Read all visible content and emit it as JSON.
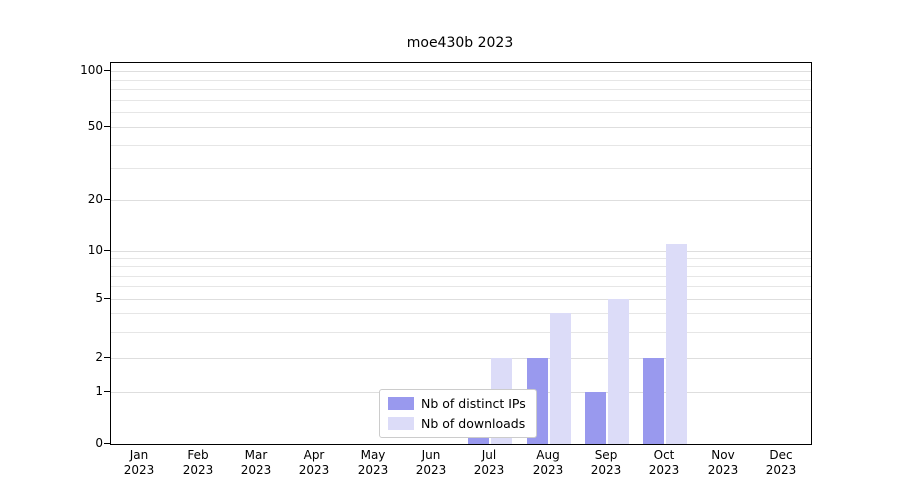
{
  "title": "moe430b 2023",
  "chart_data": {
    "type": "bar",
    "title": "moe430b 2023",
    "xlabel": "",
    "ylabel": "",
    "categories": [
      "Jan 2023",
      "Feb 2023",
      "Mar 2023",
      "Apr 2023",
      "May 2023",
      "Jun 2023",
      "Jul 2023",
      "Aug 2023",
      "Sep 2023",
      "Oct 2023",
      "Nov 2023",
      "Dec 2023"
    ],
    "series": [
      {
        "name": "Nb of distinct IPs",
        "color": "#9999ee",
        "values": [
          0,
          0,
          0,
          0,
          0,
          0,
          1,
          2,
          1,
          2,
          0,
          0
        ]
      },
      {
        "name": "Nb of downloads",
        "color": "#dcdcf8",
        "values": [
          0,
          0,
          0,
          0,
          0,
          0,
          2,
          4,
          5,
          11,
          0,
          0
        ]
      }
    ],
    "y_ticks": [
      0,
      1,
      2,
      5,
      10,
      20,
      50,
      100
    ],
    "y_minor_gridlines": [
      3,
      4,
      6,
      7,
      8,
      9,
      30,
      40,
      60,
      70,
      80,
      90
    ],
    "y_scale": "symlog",
    "ylim": [
      0,
      115
    ],
    "grid": true,
    "legend_position": "lower center"
  },
  "colors": {
    "grid": "#e6e6e6",
    "axis": "#000000",
    "background": "#ffffff"
  }
}
